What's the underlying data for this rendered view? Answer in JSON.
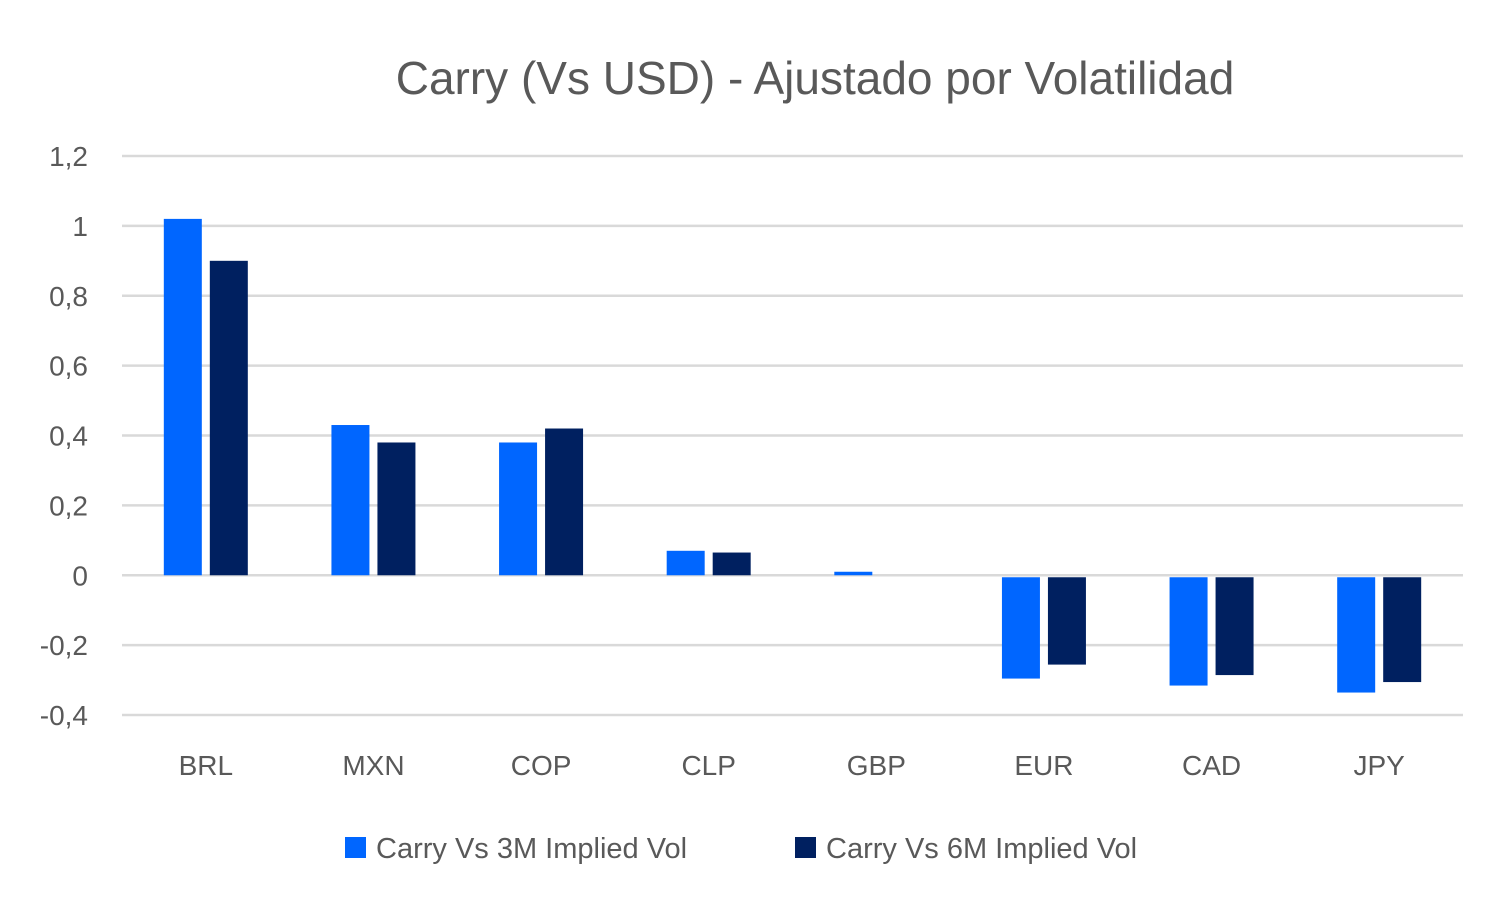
{
  "chart_data": {
    "type": "bar",
    "title": "Carry (Vs USD) - Ajustado por Volatilidad",
    "categories": [
      "BRL",
      "MXN",
      "COP",
      "CLP",
      "GBP",
      "EUR",
      "CAD",
      "JPY"
    ],
    "series": [
      {
        "name": "Carry Vs 3M Implied Vol",
        "color": "#0066FF",
        "values": [
          1.02,
          0.43,
          0.38,
          0.07,
          0.01,
          -0.29,
          -0.31,
          -0.33
        ]
      },
      {
        "name": "Carry Vs 6M Implied Vol",
        "color": "#002060",
        "values": [
          0.9,
          0.38,
          0.42,
          0.065,
          0.0,
          -0.25,
          -0.28,
          -0.3
        ]
      }
    ],
    "ylim": [
      -0.4,
      1.2
    ],
    "yticks": [
      1.2,
      1,
      0.8,
      0.6,
      0.4,
      0.2,
      0,
      -0.2,
      -0.4
    ],
    "ytick_labels": [
      "1,2",
      "1",
      "0,8",
      "0,6",
      "0,4",
      "0,2",
      "0",
      "-0,2",
      "-0,4"
    ],
    "grid": true,
    "legend_position": "bottom",
    "xlabel": "",
    "ylabel": ""
  }
}
